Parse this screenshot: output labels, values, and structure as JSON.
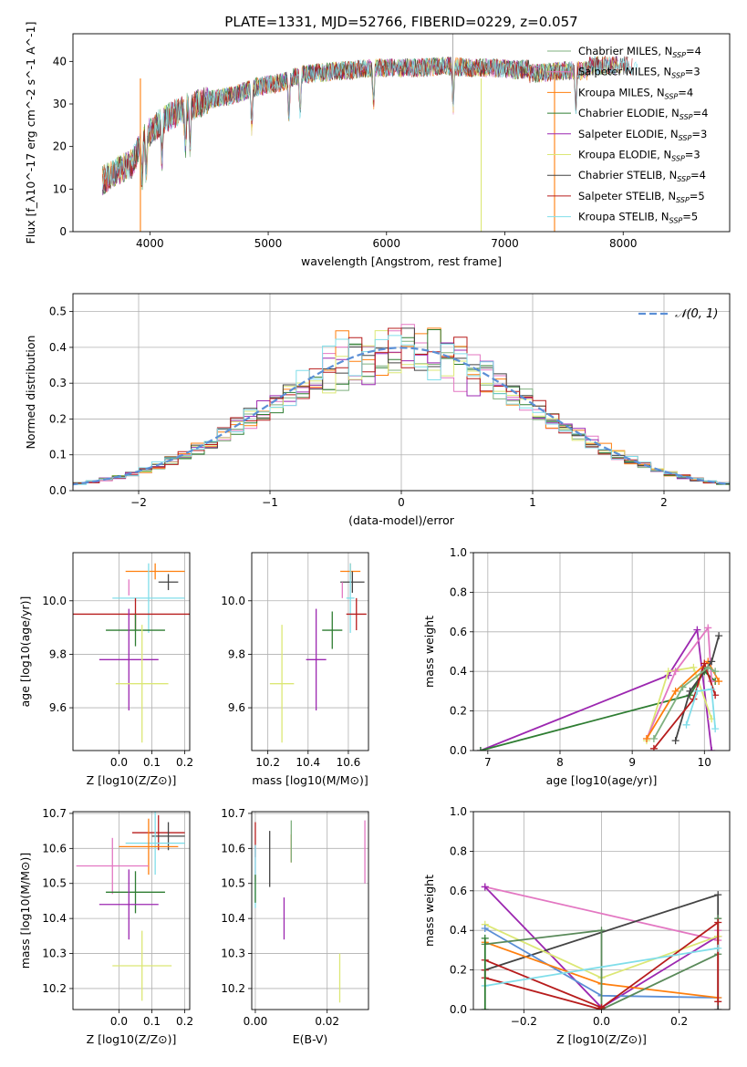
{
  "title": "PLATE=1331, MJD=52766, FIBERID=0229, z=0.057",
  "colors": {
    "CM": "#7fb07f",
    "SM": "#e377c2",
    "KM": "#ff7f0e",
    "CE": "#2e7d32",
    "SE": "#9c27b0",
    "KE": "#dce775",
    "CS": "#444444",
    "SS": "#b71c1c",
    "KS": "#80deea",
    "normal": "#5b8fd6",
    "blue": "#5b8fd6",
    "orange": "#e07b27",
    "olive": "#5a8a5a",
    "grey": "#555555"
  },
  "chart_data": [
    {
      "id": "spectrum",
      "type": "line",
      "xlabel": "wavelength [Angstrom, rest frame]",
      "ylabel": "Flux [f_λ10^-17 erg cm^-2 s^-1 A^-1]",
      "xlim": [
        3350,
        8900
      ],
      "ylim": [
        0,
        46.5
      ],
      "xticks": [
        4000,
        5000,
        6000,
        7000,
        8000
      ],
      "yticks": [
        0,
        10,
        20,
        30,
        40
      ],
      "legend_position": "top-right",
      "series": [
        {
          "name": "Chabrier MILES, N_SSP=4",
          "color_key": "CM"
        },
        {
          "name": "Salpeter MILES, N_SSP=3",
          "color_key": "SM"
        },
        {
          "name": "Kroupa MILES, N_SSP=4",
          "color_key": "KM"
        },
        {
          "name": "Chabrier ELODIE, N_SSP=4",
          "color_key": "CE"
        },
        {
          "name": "Salpeter ELODIE, N_SSP=3",
          "color_key": "SE"
        },
        {
          "name": "Kroupa ELODIE, N_SSP=3",
          "color_key": "KE"
        },
        {
          "name": "Chabrier STELIB, N_SSP=4",
          "color_key": "CS"
        },
        {
          "name": "Salpeter STELIB, N_SSP=5",
          "color_key": "SS"
        },
        {
          "name": "Kroupa STELIB, N_SSP=5",
          "color_key": "KS"
        }
      ],
      "continuum": {
        "x": [
          3600,
          3700,
          3850,
          3950,
          4100,
          4300,
          4500,
          4700,
          4900,
          5100,
          5300,
          5500,
          5700,
          5900,
          6100,
          6300,
          6500,
          6700,
          6900,
          7100,
          7300,
          7500,
          7700
        ],
        "y": [
          12,
          14,
          16,
          22,
          26,
          29,
          31,
          32,
          34,
          35,
          37,
          37.5,
          38,
          38.5,
          38.5,
          38.5,
          39,
          38.5,
          38.5,
          38,
          38.5,
          39,
          39
        ]
      }
    },
    {
      "id": "residuals",
      "type": "histogram",
      "xlabel": "(data-model)/error",
      "ylabel": "Normed distribution",
      "xlim": [
        -2.5,
        2.5
      ],
      "ylim": [
        0,
        0.55
      ],
      "xticks": [
        -2,
        -1,
        0,
        1,
        2
      ],
      "yticks": [
        0.0,
        0.1,
        0.2,
        0.3,
        0.4,
        0.5
      ],
      "legend": "𝒩(0, 1)",
      "legend_position": "top-right",
      "bin_width": 0.1
    },
    {
      "id": "age_vs_Z",
      "type": "errorbar",
      "xlabel": "Z [log10(Z/Z⊙)]",
      "ylabel": "age  [log10(age/yr)]",
      "xlim": [
        -0.14,
        0.215
      ],
      "ylim": [
        9.44,
        10.18
      ],
      "xticks": [
        0.0,
        0.1,
        0.2
      ],
      "yticks": [
        9.6,
        9.8,
        10.0
      ],
      "points": [
        {
          "key": "KM",
          "x": 0.11,
          "xerr": 0.09,
          "y": 10.11,
          "yerr": 0.03
        },
        {
          "key": "CS",
          "x": 0.15,
          "xerr": 0.03,
          "y": 10.07,
          "yerr": 0.03
        },
        {
          "key": "SM",
          "x": 0.03,
          "xerr": 0.0,
          "y": 10.05,
          "yerr": 0.03
        },
        {
          "key": "KS",
          "x": 0.09,
          "xerr": 0.11,
          "y": 10.01,
          "yerr": 0.13
        },
        {
          "key": "SS",
          "x": 0.05,
          "xerr": 0.19,
          "y": 9.95,
          "yerr": 0.06
        },
        {
          "key": "CE",
          "x": 0.05,
          "xerr": 0.09,
          "y": 9.89,
          "yerr": 0.06
        },
        {
          "key": "SE",
          "x": 0.03,
          "xerr": 0.09,
          "y": 9.78,
          "yerr": 0.19
        },
        {
          "key": "KE",
          "x": 0.07,
          "xerr": 0.08,
          "y": 9.69,
          "yerr": 0.22
        }
      ]
    },
    {
      "id": "age_vs_mass",
      "type": "errorbar",
      "xlabel": "mass [log10(M/M⊙)]",
      "ylabel": "",
      "xlim": [
        10.12,
        10.7
      ],
      "ylim": [
        9.44,
        10.18
      ],
      "xticks": [
        10.2,
        10.4,
        10.6
      ],
      "yticks": [
        9.6,
        9.8,
        10.0
      ],
      "points": [
        {
          "key": "KM",
          "x": 10.61,
          "xerr": 0.05,
          "y": 10.11,
          "yerr": 0.03
        },
        {
          "key": "CS",
          "x": 10.62,
          "xerr": 0.06,
          "y": 10.07,
          "yerr": 0.04
        },
        {
          "key": "SM",
          "x": 10.57,
          "xerr": 0.0,
          "y": 10.04,
          "yerr": 0.03
        },
        {
          "key": "KS",
          "x": 10.61,
          "xerr": 0.02,
          "y": 10.01,
          "yerr": 0.13
        },
        {
          "key": "SS",
          "x": 10.64,
          "xerr": 0.05,
          "y": 9.95,
          "yerr": 0.06
        },
        {
          "key": "CE",
          "x": 10.52,
          "xerr": 0.05,
          "y": 9.89,
          "yerr": 0.07
        },
        {
          "key": "SE",
          "x": 10.44,
          "xerr": 0.05,
          "y": 9.78,
          "yerr": 0.19
        },
        {
          "key": "KE",
          "x": 10.27,
          "xerr": 0.06,
          "y": 9.69,
          "yerr": 0.22
        }
      ]
    },
    {
      "id": "weight_vs_age",
      "type": "line",
      "xlabel": "age  [log10(age/yr)]",
      "ylabel": "mass weight",
      "xlim": [
        6.8,
        10.35
      ],
      "ylim": [
        0,
        1.0
      ],
      "xticks": [
        7,
        8,
        9,
        10
      ],
      "yticks": [
        0.0,
        0.2,
        0.4,
        0.6,
        0.8,
        1.0
      ],
      "series": [
        {
          "key": "SE",
          "x": [
            6.9,
            9.5,
            9.9,
            10.1
          ],
          "y": [
            0.0,
            0.38,
            0.61,
            0.0
          ]
        },
        {
          "key": "CE",
          "x": [
            6.9,
            9.8,
            10.0,
            10.15
          ],
          "y": [
            0.0,
            0.28,
            0.4,
            0.35
          ]
        },
        {
          "key": "KE",
          "x": [
            9.2,
            9.5,
            9.85,
            10.1
          ],
          "y": [
            0.05,
            0.4,
            0.42,
            0.16
          ]
        },
        {
          "key": "SM",
          "x": [
            9.2,
            9.6,
            10.05,
            10.1
          ],
          "y": [
            0.06,
            0.4,
            0.62,
            0.35
          ]
        },
        {
          "key": "KM",
          "x": [
            9.2,
            9.6,
            10.05,
            10.2
          ],
          "y": [
            0.06,
            0.3,
            0.45,
            0.35
          ]
        },
        {
          "key": "CS",
          "x": [
            9.6,
            9.8,
            10.1,
            10.2
          ],
          "y": [
            0.05,
            0.3,
            0.45,
            0.58
          ]
        },
        {
          "key": "SS",
          "x": [
            9.3,
            9.85,
            10.0,
            10.15
          ],
          "y": [
            0.01,
            0.26,
            0.44,
            0.28
          ]
        },
        {
          "key": "KS",
          "x": [
            9.75,
            9.9,
            10.1,
            10.15
          ],
          "y": [
            0.13,
            0.3,
            0.31,
            0.11
          ]
        },
        {
          "key": "CM",
          "x": [
            9.3,
            9.7,
            10.05,
            10.15
          ],
          "y": [
            0.06,
            0.32,
            0.42,
            0.4
          ]
        }
      ]
    },
    {
      "id": "mass_vs_Z",
      "type": "errorbar",
      "xlabel": "Z [log10(Z/Z⊙)]",
      "ylabel": "mass [log10(M/M⊙)]",
      "xlim": [
        -0.14,
        0.215
      ],
      "ylim": [
        10.14,
        10.705
      ],
      "xticks": [
        0.0,
        0.1,
        0.2
      ],
      "yticks": [
        10.2,
        10.3,
        10.4,
        10.5,
        10.6,
        10.7
      ],
      "points": [
        {
          "key": "SS",
          "x": 0.12,
          "xerr": 0.08,
          "y": 10.645,
          "yerr": 0.05
        },
        {
          "key": "CS",
          "x": 0.15,
          "xerr": 0.05,
          "y": 10.635,
          "yerr": 0.04
        },
        {
          "key": "KS",
          "x": 0.11,
          "xerr": 0.09,
          "y": 10.615,
          "yerr": 0.09
        },
        {
          "key": "KM",
          "x": 0.09,
          "xerr": 0.09,
          "y": 10.605,
          "yerr": 0.08
        },
        {
          "key": "SM",
          "x": -0.02,
          "xerr": 0.11,
          "y": 10.55,
          "yerr": 0.08
        },
        {
          "key": "CE",
          "x": 0.05,
          "xerr": 0.09,
          "y": 10.475,
          "yerr": 0.06
        },
        {
          "key": "SE",
          "x": 0.03,
          "xerr": 0.09,
          "y": 10.44,
          "yerr": 0.1
        },
        {
          "key": "KE",
          "x": 0.07,
          "xerr": 0.09,
          "y": 10.265,
          "yerr": 0.1
        }
      ]
    },
    {
      "id": "mass_vs_EBV",
      "type": "errorbar",
      "xlabel": "E(B-V)",
      "ylabel": "",
      "xlim": [
        -0.001,
        0.0315
      ],
      "ylim": [
        10.14,
        10.705
      ],
      "xticks": [
        0.0,
        0.02
      ],
      "yticks": [
        10.2,
        10.3,
        10.4,
        10.5,
        10.6,
        10.7
      ],
      "points": [
        {
          "key": "SS",
          "x": 0.0,
          "xerr": 0.0,
          "y": 10.625,
          "yerr": 0.05
        },
        {
          "key": "SM",
          "x": 0.0,
          "xerr": 0.0,
          "y": 10.555,
          "yerr": 0.05
        },
        {
          "key": "KS",
          "x": 0.0,
          "xerr": 0.0,
          "y": 10.52,
          "yerr": 0.09
        },
        {
          "key": "CE",
          "x": 0.0,
          "xerr": 0.0,
          "y": 10.485,
          "yerr": 0.04
        },
        {
          "key": "CS",
          "x": 0.004,
          "xerr": 0.0,
          "y": 10.57,
          "yerr": 0.08
        },
        {
          "key": "KM",
          "x": 0.01,
          "xerr": 0.0,
          "y": 10.6,
          "yerr": 0.04
        },
        {
          "key": "CM",
          "x": 0.01,
          "xerr": 0.0,
          "y": 10.62,
          "yerr": 0.06
        },
        {
          "key": "SE",
          "x": 0.008,
          "xerr": 0.0,
          "y": 10.4,
          "yerr": 0.06
        },
        {
          "key": "KE",
          "x": 0.0235,
          "xerr": 0.0,
          "y": 10.23,
          "yerr": 0.07
        },
        {
          "key": "SM",
          "x": 0.0305,
          "xerr": 0.0,
          "y": 10.59,
          "yerr": 0.09
        }
      ]
    },
    {
      "id": "weight_vs_Z",
      "type": "line",
      "xlabel": "Z [log10(Z/Z⊙)]",
      "ylabel": "mass weight",
      "xlim": [
        -0.33,
        0.33
      ],
      "ylim": [
        0,
        1.0
      ],
      "xticks": [
        -0.2,
        0.0,
        0.2
      ],
      "yticks": [
        0.0,
        0.2,
        0.4,
        0.6,
        0.8,
        1.0
      ],
      "series": [
        {
          "key": "SM",
          "x": [
            -0.3,
            0.3,
            0.3
          ],
          "y": [
            0.62,
            0.35,
            0.4
          ]
        },
        {
          "key": "SE",
          "x": [
            -0.3,
            0.0,
            0.3
          ],
          "y": [
            0.62,
            0.01,
            0.37
          ]
        },
        {
          "key": "CS",
          "x": [
            -0.3,
            0.3,
            0.3
          ],
          "y": [
            0.2,
            0.58,
            0.0
          ]
        },
        {
          "key": "KE",
          "x": [
            -0.3,
            0.0,
            0.3
          ],
          "y": [
            0.43,
            0.16,
            0.37
          ]
        },
        {
          "key": "blue",
          "x": [
            -0.3,
            0.0,
            0.3
          ],
          "y": [
            0.41,
            0.07,
            0.06
          ]
        },
        {
          "key": "KM",
          "x": [
            -0.3,
            0.0,
            0.3
          ],
          "y": [
            0.34,
            0.13,
            0.06
          ]
        },
        {
          "key": "olive",
          "x": [
            -0.3,
            0.0,
            0.0,
            0.3,
            0.3
          ],
          "y": [
            0.33,
            0.4,
            0.0,
            0.28,
            0.46
          ]
        },
        {
          "key": "SS",
          "x": [
            -0.3,
            0.0,
            0.3,
            0.3
          ],
          "y": [
            0.25,
            0.01,
            0.44,
            0.04
          ]
        },
        {
          "key": "SS",
          "x": [
            -0.3,
            -0.3,
            0.0
          ],
          "y": [
            0.2,
            0.16,
            0.0
          ]
        },
        {
          "key": "KS",
          "x": [
            -0.3,
            0.3
          ],
          "y": [
            0.12,
            0.31
          ]
        },
        {
          "key": "CE",
          "x": [
            -0.3,
            -0.3
          ],
          "y": [
            0.0,
            0.36
          ]
        }
      ]
    }
  ]
}
